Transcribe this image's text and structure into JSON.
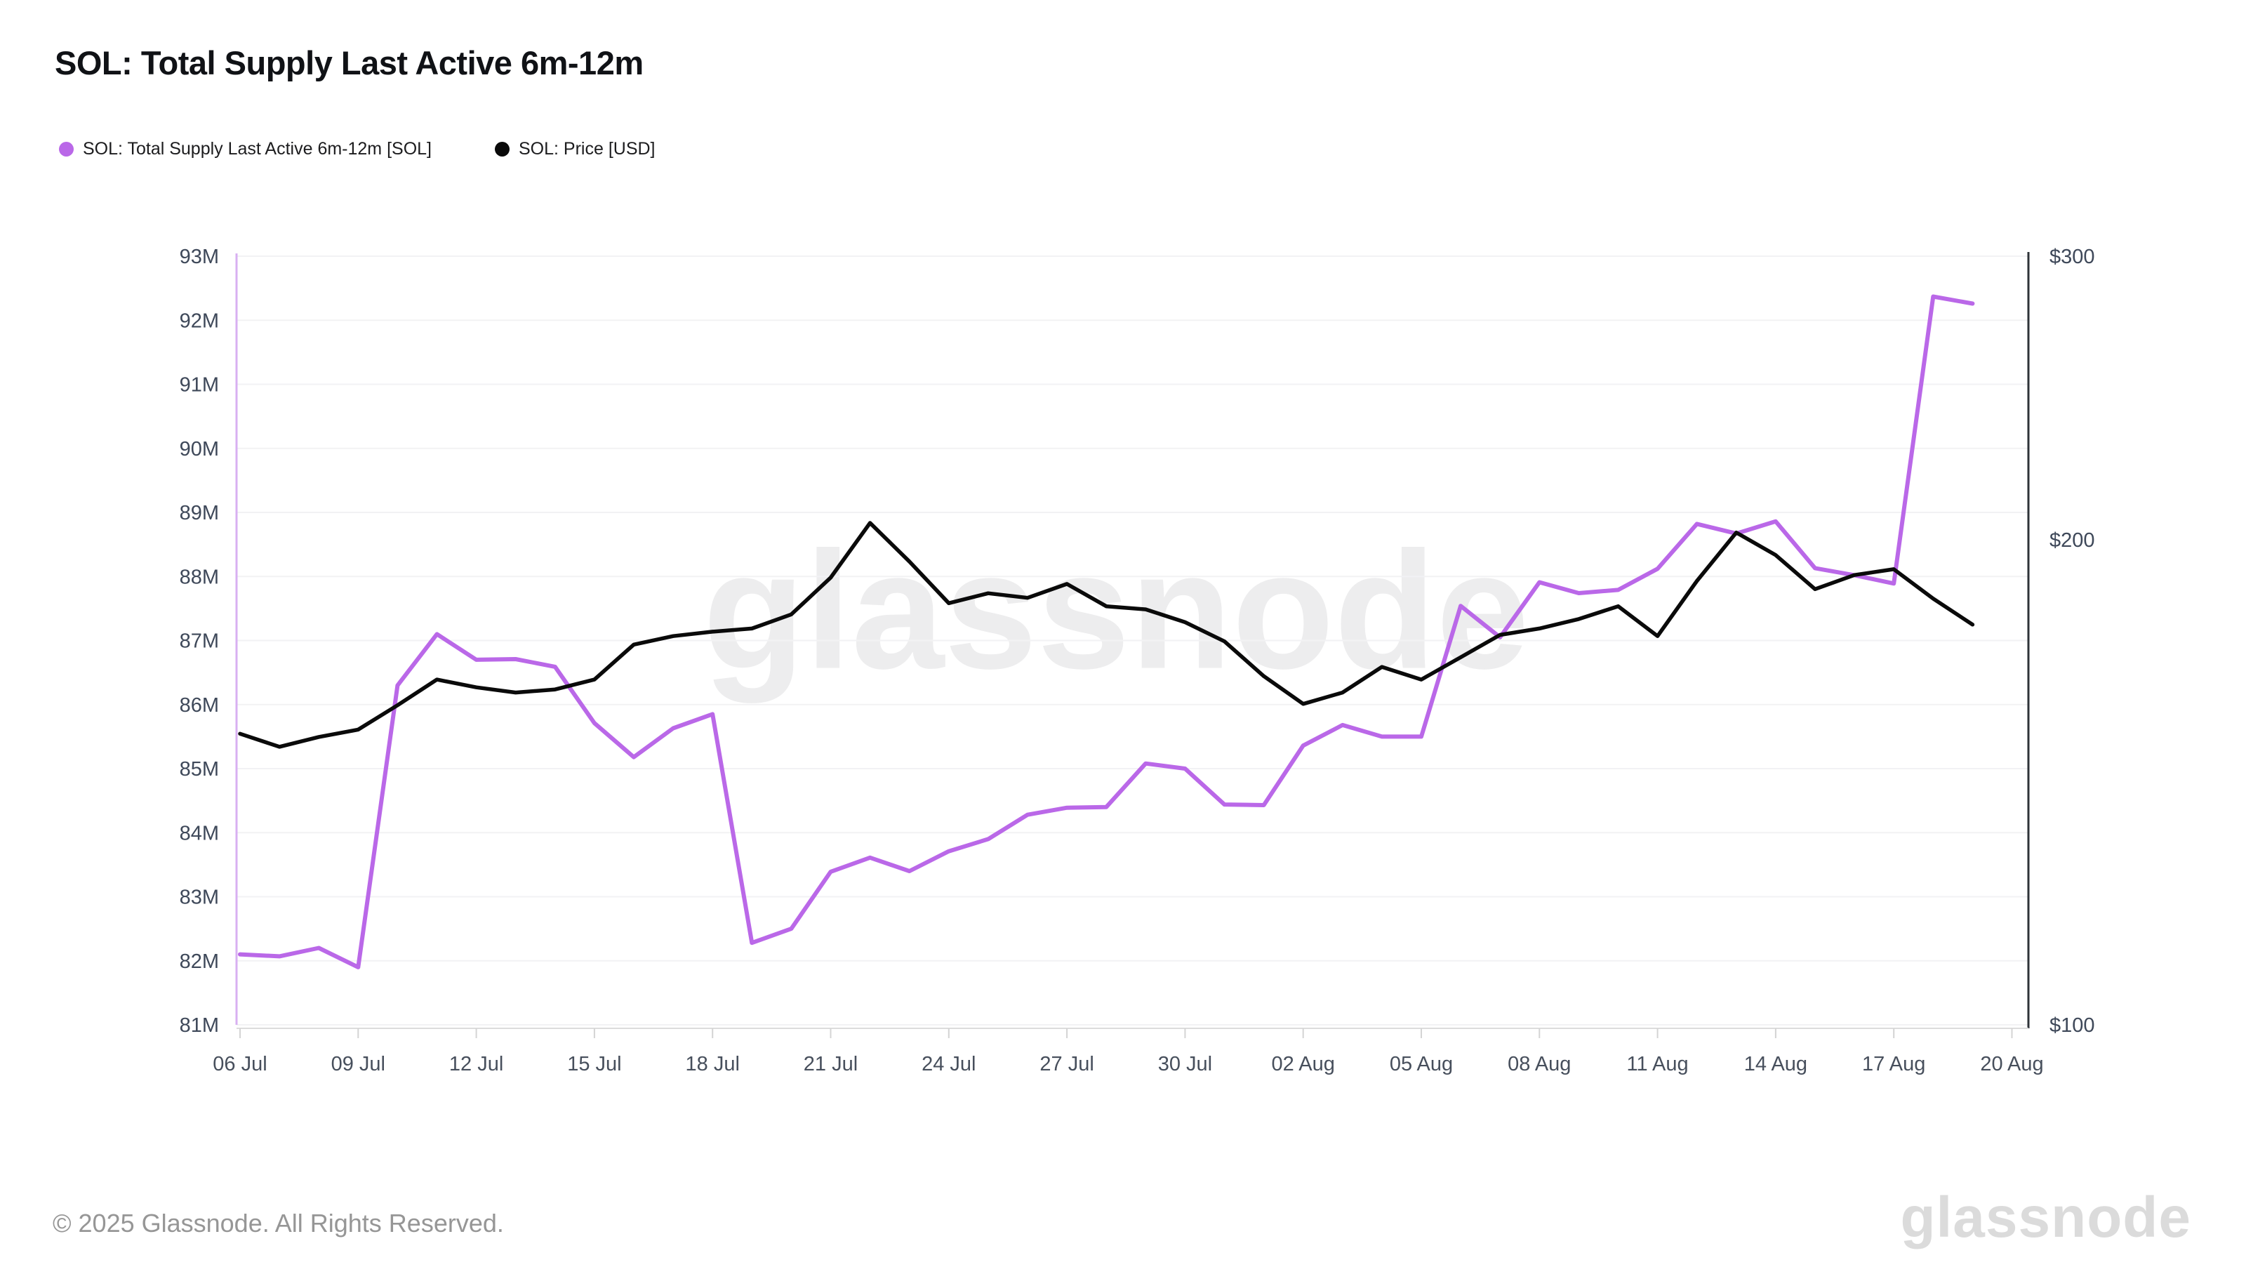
{
  "title": "SOL: Total Supply Last Active 6m-12m",
  "legend": [
    {
      "label": "SOL: Total Supply Last Active 6m-12m [SOL]",
      "color": "#ba68e8"
    },
    {
      "label": "SOL: Price [USD]",
      "color": "#0a0a0a"
    }
  ],
  "watermark": "glassnode",
  "footer": {
    "copyright": "© 2025 Glassnode. All Rights Reserved.",
    "logo": "glassnode"
  },
  "chart_data": {
    "type": "line",
    "title": "SOL: Total Supply Last Active 6m-12m",
    "grid": "horizontal",
    "legend_position": "top-left",
    "x": [
      "06 Jul",
      "07 Jul",
      "08 Jul",
      "09 Jul",
      "10 Jul",
      "11 Jul",
      "12 Jul",
      "13 Jul",
      "14 Jul",
      "15 Jul",
      "16 Jul",
      "17 Jul",
      "18 Jul",
      "19 Jul",
      "20 Jul",
      "21 Jul",
      "22 Jul",
      "23 Jul",
      "24 Jul",
      "25 Jul",
      "26 Jul",
      "27 Jul",
      "28 Jul",
      "29 Jul",
      "30 Jul",
      "31 Jul",
      "01 Aug",
      "02 Aug",
      "03 Aug",
      "04 Aug",
      "05 Aug",
      "06 Aug",
      "07 Aug",
      "08 Aug",
      "09 Aug",
      "10 Aug",
      "11 Aug",
      "12 Aug",
      "13 Aug",
      "14 Aug",
      "15 Aug",
      "16 Aug",
      "17 Aug",
      "18 Aug",
      "19 Aug"
    ],
    "x_tick_labels": [
      "06 Jul",
      "09 Jul",
      "12 Jul",
      "15 Jul",
      "18 Jul",
      "21 Jul",
      "24 Jul",
      "27 Jul",
      "30 Jul",
      "02 Aug",
      "05 Aug",
      "08 Aug",
      "11 Aug",
      "14 Aug",
      "17 Aug",
      "20 Aug"
    ],
    "y_left": {
      "unit": "M SOL",
      "scale": "linear",
      "min": 81,
      "max": 93,
      "tick_labels": [
        "93M",
        "92M",
        "91M",
        "90M",
        "89M",
        "88M",
        "87M",
        "86M",
        "85M",
        "84M",
        "83M",
        "82M",
        "81M"
      ]
    },
    "y_right": {
      "unit": "USD",
      "scale": "log",
      "min": 100,
      "max": 300,
      "ticks": [
        {
          "text": "$300",
          "value": 300
        },
        {
          "text": "$200",
          "value": 200
        },
        {
          "text": "$100",
          "value": 100
        }
      ]
    },
    "series": [
      {
        "name": "SOL: Total Supply Last Active 6m-12m [SOL]",
        "axis": "left",
        "color": "#ba68e8",
        "unit": "M",
        "values": [
          82.1,
          82.07,
          82.2,
          81.9,
          86.3,
          87.1,
          86.7,
          86.71,
          86.59,
          85.71,
          85.18,
          85.63,
          85.85,
          82.28,
          82.5,
          83.39,
          83.61,
          83.4,
          83.71,
          83.9,
          84.28,
          84.39,
          84.4,
          85.08,
          85.0,
          84.44,
          84.43,
          85.36,
          85.68,
          85.5,
          85.5,
          87.54,
          87.05,
          87.91,
          87.74,
          87.79,
          88.12,
          88.82,
          88.67,
          88.86,
          88.13,
          88.02,
          87.89,
          92.37,
          92.26
        ]
      },
      {
        "name": "SOL: Price [USD]",
        "axis": "right",
        "color": "#0a0a0a",
        "unit": "USD",
        "values": [
          151.6,
          148.8,
          150.9,
          152.5,
          157.9,
          163.8,
          162.0,
          160.8,
          161.5,
          163.8,
          172.2,
          174.3,
          175.4,
          176.2,
          179.8,
          189.5,
          204.9,
          193.9,
          182.7,
          185.3,
          184.1,
          187.8,
          181.9,
          181.1,
          177.8,
          173.0,
          164.6,
          158.2,
          160.8,
          166.8,
          163.8,
          169.1,
          174.6,
          176.2,
          178.6,
          181.9,
          174.3,
          188.6,
          202.1,
          195.7,
          186.4,
          190.2,
          191.8,
          183.9,
          177.2
        ]
      }
    ]
  }
}
